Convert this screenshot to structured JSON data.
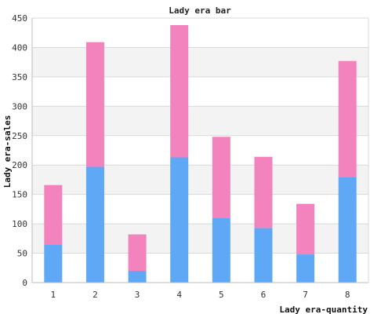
{
  "chart_data": {
    "type": "bar",
    "stacked": true,
    "title": "Lady era bar",
    "xlabel": "Lady era-quantity",
    "ylabel": "Lady era-sales",
    "categories": [
      "1",
      "2",
      "3",
      "4",
      "5",
      "6",
      "7",
      "8"
    ],
    "ylim": [
      0,
      450
    ],
    "yticks": [
      0,
      50,
      100,
      150,
      200,
      250,
      300,
      350,
      400,
      450
    ],
    "grid": true,
    "series": [
      {
        "color": "#5fa8f5",
        "values": [
          65,
          197,
          20,
          213,
          110,
          93,
          48,
          180
        ]
      },
      {
        "color": "#f283bc",
        "values": [
          101,
          212,
          62,
          225,
          138,
          121,
          86,
          197
        ]
      }
    ]
  }
}
